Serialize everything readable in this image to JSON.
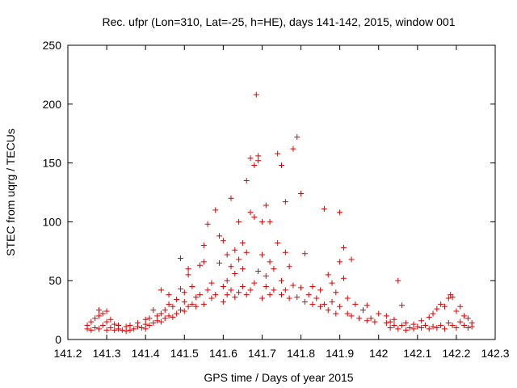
{
  "chart_data": {
    "type": "scatter",
    "title": "Rec. ufpr (Lon=310, Lat=-25, h=HE), days 141-142, 2015, window 001",
    "xlabel": "GPS time / Days of year 2015",
    "ylabel": "STEC from uqrg / TECUs",
    "xlim": [
      141.2,
      142.3
    ],
    "ylim": [
      0,
      250
    ],
    "x_ticks": [
      "141.2",
      "141.3",
      "141.4",
      "141.5",
      "141.6",
      "141.7",
      "141.8",
      "141.9",
      "142",
      "142.1",
      "142.2",
      "142.3"
    ],
    "y_ticks": [
      "0",
      "50",
      "100",
      "150",
      "200",
      "250"
    ],
    "marker": "+",
    "marker_color": "#e00000",
    "grid": false,
    "series": [
      {
        "points": [
          [
            141.25,
            9
          ],
          [
            141.25,
            12
          ],
          [
            141.26,
            8
          ],
          [
            141.26,
            15
          ],
          [
            141.27,
            10
          ],
          [
            141.27,
            18
          ],
          [
            141.28,
            25
          ],
          [
            141.28,
            9
          ],
          [
            141.28,
            20
          ],
          [
            141.29,
            12
          ],
          [
            141.29,
            22
          ],
          [
            141.3,
            8
          ],
          [
            141.3,
            24
          ],
          [
            141.3,
            15
          ],
          [
            141.31,
            10
          ],
          [
            141.31,
            17
          ],
          [
            141.32,
            8
          ],
          [
            141.32,
            13
          ],
          [
            141.33,
            9
          ],
          [
            141.33,
            12
          ],
          [
            141.34,
            8
          ],
          [
            141.35,
            7
          ],
          [
            141.35,
            11
          ],
          [
            141.36,
            8
          ],
          [
            141.36,
            12
          ],
          [
            141.37,
            9
          ],
          [
            141.38,
            11
          ],
          [
            141.38,
            14
          ],
          [
            141.39,
            10
          ],
          [
            141.4,
            9
          ],
          [
            141.4,
            13
          ],
          [
            141.4,
            17
          ],
          [
            141.41,
            12
          ],
          [
            141.41,
            18
          ],
          [
            141.42,
            14
          ],
          [
            141.42,
            25
          ],
          [
            141.43,
            16
          ],
          [
            141.43,
            20
          ],
          [
            141.44,
            15
          ],
          [
            141.44,
            22
          ],
          [
            141.44,
            42
          ],
          [
            141.45,
            18
          ],
          [
            141.45,
            25
          ],
          [
            141.46,
            20
          ],
          [
            141.46,
            30
          ],
          [
            141.46,
            38
          ],
          [
            141.47,
            19
          ],
          [
            141.47,
            28
          ],
          [
            141.48,
            22
          ],
          [
            141.48,
            34
          ],
          [
            141.49,
            25
          ],
          [
            141.49,
            43
          ],
          [
            141.49,
            69
          ],
          [
            141.5,
            24
          ],
          [
            141.5,
            32
          ],
          [
            141.5,
            40
          ],
          [
            141.51,
            60
          ],
          [
            141.51,
            55
          ],
          [
            141.51,
            28
          ],
          [
            141.52,
            30
          ],
          [
            141.52,
            45
          ],
          [
            141.53,
            28
          ],
          [
            141.53,
            36
          ],
          [
            141.54,
            38
          ],
          [
            141.54,
            63
          ],
          [
            141.55,
            80
          ],
          [
            141.55,
            66
          ],
          [
            141.55,
            30
          ],
          [
            141.56,
            42
          ],
          [
            141.56,
            98
          ],
          [
            141.57,
            35
          ],
          [
            141.57,
            48
          ],
          [
            141.58,
            110
          ],
          [
            141.58,
            38
          ],
          [
            141.59,
            65
          ],
          [
            141.59,
            88
          ],
          [
            141.6,
            32
          ],
          [
            141.6,
            45
          ],
          [
            141.6,
            84
          ],
          [
            141.61,
            38
          ],
          [
            141.61,
            50
          ],
          [
            141.61,
            72
          ],
          [
            141.62,
            42
          ],
          [
            141.62,
            120
          ],
          [
            141.62,
            62
          ],
          [
            141.63,
            36
          ],
          [
            141.63,
            56
          ],
          [
            141.63,
            76
          ],
          [
            141.64,
            40
          ],
          [
            141.64,
            100
          ],
          [
            141.64,
            68
          ],
          [
            141.65,
            45
          ],
          [
            141.65,
            82
          ],
          [
            141.65,
            60
          ],
          [
            141.66,
            135
          ],
          [
            141.66,
            38
          ],
          [
            141.66,
            74
          ],
          [
            141.67,
            42
          ],
          [
            141.67,
            108
          ],
          [
            141.67,
            154
          ],
          [
            141.68,
            48
          ],
          [
            141.68,
            104
          ],
          [
            141.68,
            148
          ],
          [
            141.685,
            208
          ],
          [
            141.69,
            58
          ],
          [
            141.69,
            152
          ],
          [
            141.69,
            156
          ],
          [
            141.7,
            35
          ],
          [
            141.7,
            72
          ],
          [
            141.7,
            100
          ],
          [
            141.71,
            45
          ],
          [
            141.71,
            114
          ],
          [
            141.71,
            54
          ],
          [
            141.72,
            38
          ],
          [
            141.72,
            66
          ],
          [
            141.72,
            100
          ],
          [
            141.73,
            42
          ],
          [
            141.73,
            60
          ],
          [
            141.74,
            158
          ],
          [
            141.74,
            82
          ],
          [
            141.75,
            148
          ],
          [
            141.75,
            38
          ],
          [
            141.75,
            50
          ],
          [
            141.76,
            117
          ],
          [
            141.76,
            42
          ],
          [
            141.76,
            74
          ],
          [
            141.77,
            35
          ],
          [
            141.77,
            62
          ],
          [
            141.78,
            162
          ],
          [
            141.78,
            46
          ],
          [
            141.79,
            172
          ],
          [
            141.79,
            36
          ],
          [
            141.8,
            124
          ],
          [
            141.8,
            44
          ],
          [
            141.81,
            32
          ],
          [
            141.81,
            73
          ],
          [
            141.82,
            38
          ],
          [
            141.83,
            30
          ],
          [
            141.83,
            45
          ],
          [
            141.84,
            35
          ],
          [
            141.85,
            28
          ],
          [
            141.85,
            42
          ],
          [
            141.86,
            111
          ],
          [
            141.86,
            30
          ],
          [
            141.87,
            25
          ],
          [
            141.87,
            55
          ],
          [
            141.88,
            32
          ],
          [
            141.88,
            48
          ],
          [
            141.89,
            22
          ],
          [
            141.89,
            40
          ],
          [
            141.9,
            108
          ],
          [
            141.9,
            66
          ],
          [
            141.9,
            28
          ],
          [
            141.91,
            78
          ],
          [
            141.91,
            52
          ],
          [
            141.92,
            22
          ],
          [
            141.92,
            35
          ],
          [
            141.93,
            68
          ],
          [
            141.93,
            20
          ],
          [
            141.94,
            30
          ],
          [
            141.95,
            18
          ],
          [
            141.96,
            25
          ],
          [
            141.97,
            16
          ],
          [
            141.97,
            29
          ],
          [
            141.98,
            18
          ],
          [
            141.99,
            15
          ],
          [
            142.0,
            22
          ],
          [
            142.02,
            14
          ],
          [
            142.02,
            20
          ],
          [
            142.03,
            10
          ],
          [
            142.03,
            15
          ],
          [
            142.04,
            12
          ],
          [
            142.04,
            17
          ],
          [
            142.05,
            50
          ],
          [
            142.05,
            9
          ],
          [
            142.06,
            29
          ],
          [
            142.06,
            12
          ],
          [
            142.07,
            8
          ],
          [
            142.07,
            14
          ],
          [
            142.08,
            10
          ],
          [
            142.09,
            9
          ],
          [
            142.09,
            13
          ],
          [
            142.1,
            11
          ],
          [
            142.11,
            10
          ],
          [
            142.11,
            16
          ],
          [
            142.12,
            12
          ],
          [
            142.13,
            9
          ],
          [
            142.13,
            19
          ],
          [
            142.14,
            11
          ],
          [
            142.14,
            22
          ],
          [
            142.15,
            10
          ],
          [
            142.15,
            26
          ],
          [
            142.16,
            12
          ],
          [
            142.16,
            30
          ],
          [
            142.17,
            9
          ],
          [
            142.17,
            28
          ],
          [
            142.18,
            14
          ],
          [
            142.18,
            35
          ],
          [
            142.185,
            38
          ],
          [
            142.19,
            12
          ],
          [
            142.19,
            36
          ],
          [
            142.2,
            24
          ],
          [
            142.2,
            10
          ],
          [
            142.21,
            28
          ],
          [
            142.21,
            15
          ],
          [
            142.22,
            20
          ],
          [
            142.22,
            12
          ],
          [
            142.23,
            18
          ],
          [
            142.23,
            10
          ],
          [
            142.24,
            14
          ],
          [
            142.24,
            11
          ]
        ]
      }
    ]
  }
}
